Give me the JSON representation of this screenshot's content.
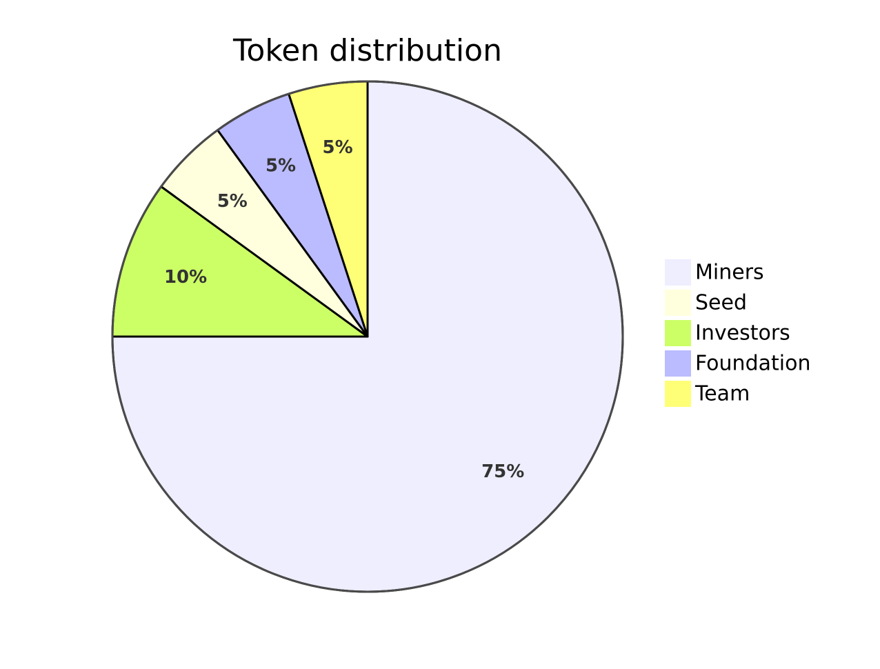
{
  "chart_data": {
    "type": "pie",
    "title": "Token distribution",
    "show_data": false,
    "legend_position": "right",
    "slices": [
      {
        "label": "Miners",
        "value": 75,
        "display": "75%",
        "color": "#eeeeff"
      },
      {
        "label": "Seed",
        "value": 5,
        "display": "5%",
        "color": "#ffffde"
      },
      {
        "label": "Investors",
        "value": 10,
        "display": "10%",
        "color": "#ccff66"
      },
      {
        "label": "Foundation",
        "value": 5,
        "display": "5%",
        "color": "#bbbbff"
      },
      {
        "label": "Team",
        "value": 5,
        "display": "5%",
        "color": "#ffff77"
      }
    ],
    "draw_order": [
      "Miners",
      "Investors",
      "Seed",
      "Foundation",
      "Team"
    ]
  }
}
